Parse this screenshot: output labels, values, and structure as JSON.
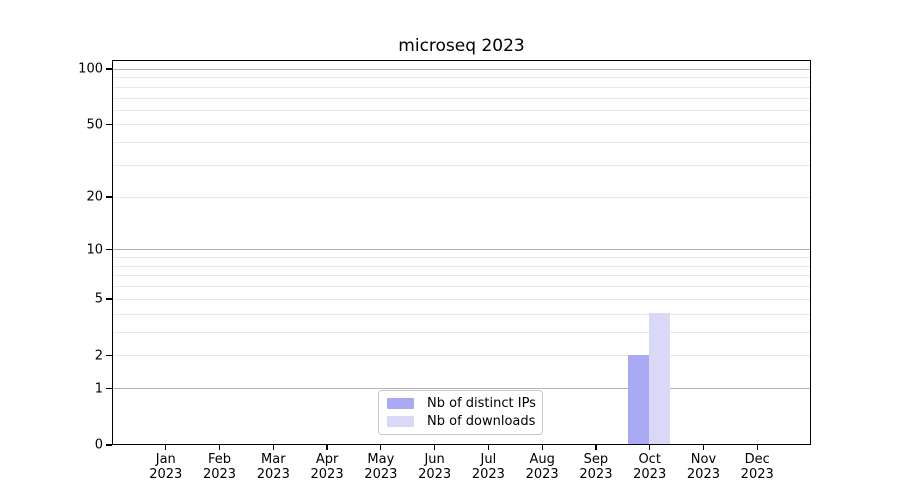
{
  "chart_data": {
    "type": "bar",
    "title": "microseq 2023",
    "categories": [
      "Jan 2023",
      "Feb 2023",
      "Mar 2023",
      "Apr 2023",
      "May 2023",
      "Jun 2023",
      "Jul 2023",
      "Aug 2023",
      "Sep 2023",
      "Oct 2023",
      "Nov 2023",
      "Dec 2023"
    ],
    "x_tick_labels": [
      {
        "m": "Jan",
        "y": "2023"
      },
      {
        "m": "Feb",
        "y": "2023"
      },
      {
        "m": "Mar",
        "y": "2023"
      },
      {
        "m": "Apr",
        "y": "2023"
      },
      {
        "m": "May",
        "y": "2023"
      },
      {
        "m": "Jun",
        "y": "2023"
      },
      {
        "m": "Jul",
        "y": "2023"
      },
      {
        "m": "Aug",
        "y": "2023"
      },
      {
        "m": "Sep",
        "y": "2023"
      },
      {
        "m": "Oct",
        "y": "2023"
      },
      {
        "m": "Nov",
        "y": "2023"
      },
      {
        "m": "Dec",
        "y": "2023"
      }
    ],
    "series": [
      {
        "name": "Nb of distinct IPs",
        "color": "#a9a9f4",
        "values": [
          0,
          0,
          0,
          0,
          0,
          0,
          0,
          0,
          0,
          2,
          0,
          0
        ]
      },
      {
        "name": "Nb of downloads",
        "color": "#d9d9f7",
        "values": [
          0,
          0,
          0,
          0,
          0,
          0,
          0,
          0,
          0,
          4,
          0,
          0
        ]
      }
    ],
    "yscale": "log1p",
    "ylim": [
      0,
      112
    ],
    "yticks": [
      0,
      1,
      2,
      5,
      10,
      20,
      50,
      100
    ],
    "major_gridlines": [
      1,
      10,
      100
    ],
    "minor_gridlines": [
      2,
      3,
      4,
      5,
      6,
      7,
      8,
      9,
      20,
      30,
      40,
      50,
      60,
      70,
      80,
      90
    ],
    "grid": true,
    "legend_position": "lower center"
  },
  "legend": {
    "entries": [
      {
        "label": "Nb of distinct IPs",
        "color": "#a9a9f4"
      },
      {
        "label": "Nb of downloads",
        "color": "#d9d9f7"
      }
    ]
  },
  "colors": {
    "background": "#ffffff",
    "spine": "#000000",
    "text": "#000000",
    "major_grid": "#b3b3b3",
    "minor_grid": "#e9e9e9",
    "bar_distinct_ips": "#a9a9f4",
    "bar_downloads": "#d9d9f7"
  }
}
